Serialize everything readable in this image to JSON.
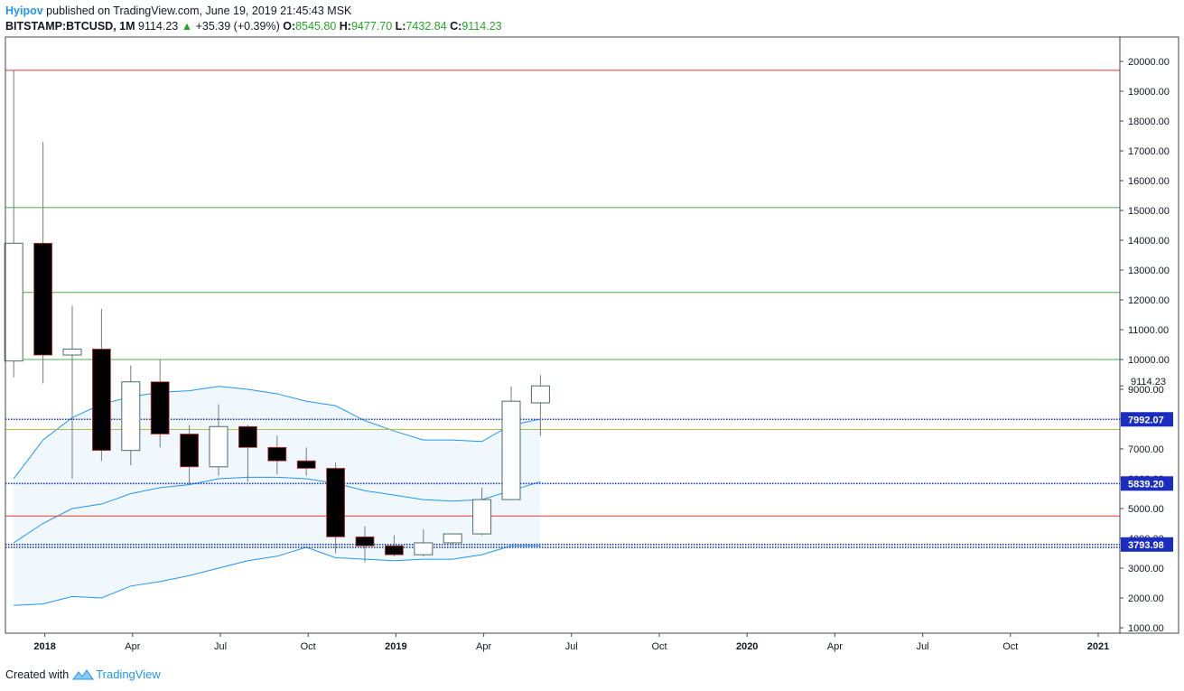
{
  "header": {
    "author": "Hyipov",
    "published_text": "published on TradingView.com, June 19, 2019 21:45:43 MSK",
    "symbol": "BITSTAMP:BTCUSD, 1M",
    "last": "9114.23",
    "change_arrow": "▲",
    "change": "+35.39 (+0.39%)",
    "o_label": "O:",
    "o_value": "8545.80",
    "h_label": "H:",
    "h_value": "9477.70",
    "l_label": "L:",
    "l_value": "7432.84",
    "c_label": "C:",
    "c_value": "9114.23"
  },
  "footer": {
    "created_with": "Created with",
    "brand": "TradingView"
  },
  "colors": {
    "up_border": "#4a6e5e",
    "down_fill": "#000000",
    "band": "#2196f3",
    "band_fill": "#e3f2fd",
    "red_line": "#e53935",
    "green_line": "#4caf50",
    "olive_line": "#b5b84a",
    "blue_dotted": "#1a3cc8",
    "label_bg": "#1b2cc1"
  },
  "chart_data": {
    "type": "candlestick",
    "title": "BITSTAMP:BTCUSD, 1M",
    "ylim": [
      700,
      20800
    ],
    "y_ticks": [
      "1000.00",
      "2000.00",
      "3000.00",
      "4000.00",
      "5000.00",
      "6000.00",
      "7000.00",
      "8000.00",
      "9000.00",
      "10000.00",
      "11000.00",
      "12000.00",
      "13000.00",
      "14000.00",
      "15000.00",
      "16000.00",
      "17000.00",
      "18000.00",
      "19000.00",
      "20000.00"
    ],
    "x_ticks": [
      "2018",
      "Apr",
      "Jul",
      "Oct",
      "2019",
      "Apr",
      "Jul",
      "Oct",
      "2020",
      "Apr",
      "Jul",
      "Oct",
      "2021"
    ],
    "candles": [
      {
        "date": "2017-12",
        "o": 9950,
        "h": 19700,
        "l": 9400,
        "c": 13900
      },
      {
        "date": "2018-01",
        "o": 13900,
        "h": 17300,
        "l": 9200,
        "c": 10150
      },
      {
        "date": "2018-02",
        "o": 10150,
        "h": 11800,
        "l": 6000,
        "c": 10350
      },
      {
        "date": "2018-03",
        "o": 10350,
        "h": 11700,
        "l": 6600,
        "c": 6950
      },
      {
        "date": "2018-04",
        "o": 6950,
        "h": 9800,
        "l": 6450,
        "c": 9250
      },
      {
        "date": "2018-05",
        "o": 9250,
        "h": 10000,
        "l": 7050,
        "c": 7500
      },
      {
        "date": "2018-06",
        "o": 7500,
        "h": 7800,
        "l": 5800,
        "c": 6400
      },
      {
        "date": "2018-07",
        "o": 6400,
        "h": 8500,
        "l": 6100,
        "c": 7750
      },
      {
        "date": "2018-08",
        "o": 7750,
        "h": 7800,
        "l": 5900,
        "c": 7050
      },
      {
        "date": "2018-09",
        "o": 7050,
        "h": 7450,
        "l": 6150,
        "c": 6600
      },
      {
        "date": "2018-10",
        "o": 6600,
        "h": 7050,
        "l": 6100,
        "c": 6350
      },
      {
        "date": "2018-11",
        "o": 6350,
        "h": 6550,
        "l": 3500,
        "c": 4050
      },
      {
        "date": "2018-12",
        "o": 4050,
        "h": 4400,
        "l": 3200,
        "c": 3750
      },
      {
        "date": "2019-01",
        "o": 3750,
        "h": 4100,
        "l": 3400,
        "c": 3450
      },
      {
        "date": "2019-02",
        "o": 3450,
        "h": 4300,
        "l": 3400,
        "c": 3850
      },
      {
        "date": "2019-03",
        "o": 3850,
        "h": 4150,
        "l": 3750,
        "c": 4150
      },
      {
        "date": "2019-04",
        "o": 4150,
        "h": 5700,
        "l": 4100,
        "c": 5300
      },
      {
        "date": "2019-05",
        "o": 5300,
        "h": 9100,
        "l": 5300,
        "c": 8600
      },
      {
        "date": "2019-06",
        "o": 8545.8,
        "h": 9477.7,
        "l": 7432.84,
        "c": 9114.23
      }
    ],
    "bands": {
      "upper": [
        6000,
        7300,
        8050,
        8500,
        8750,
        8900,
        8950,
        9100,
        9000,
        8850,
        8600,
        8450,
        7950,
        7600,
        7300,
        7300,
        7250,
        7800,
        8000
      ],
      "middle": [
        3850,
        4500,
        5000,
        5150,
        5500,
        5700,
        5800,
        6000,
        6050,
        6050,
        6000,
        5850,
        5600,
        5450,
        5300,
        5250,
        5300,
        5600,
        5900
      ],
      "lower": [
        1750,
        1800,
        2050,
        2000,
        2400,
        2550,
        2750,
        3000,
        3250,
        3400,
        3700,
        3350,
        3300,
        3250,
        3300,
        3300,
        3450,
        3750,
        3750
      ]
    },
    "levels": [
      {
        "value": 19700,
        "color": "red",
        "style": "solid"
      },
      {
        "value": 15100,
        "color": "green",
        "style": "solid"
      },
      {
        "value": 12250,
        "color": "green",
        "style": "solid"
      },
      {
        "value": 10000,
        "color": "green",
        "style": "solid"
      },
      {
        "value": 7650,
        "color": "olive",
        "style": "solid"
      },
      {
        "value": 4750,
        "color": "red",
        "style": "solid"
      },
      {
        "value": 7992.07,
        "color": "blue",
        "style": "dotted",
        "label": "7992.07"
      },
      {
        "value": 5839.2,
        "color": "blue",
        "style": "dotted",
        "label": "5839.20"
      },
      {
        "value": 3793.98,
        "color": "blue",
        "style": "dotted",
        "label": "3793.98"
      },
      {
        "value": 3700,
        "color": "blue",
        "style": "dotted"
      }
    ],
    "last_price_label": "9114.23"
  }
}
